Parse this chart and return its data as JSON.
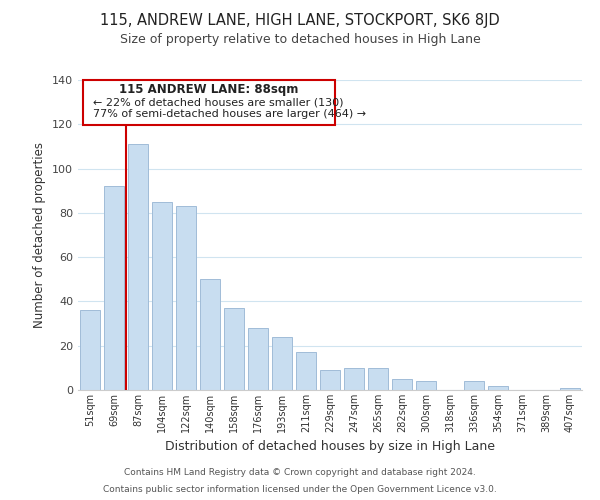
{
  "title": "115, ANDREW LANE, HIGH LANE, STOCKPORT, SK6 8JD",
  "subtitle": "Size of property relative to detached houses in High Lane",
  "xlabel": "Distribution of detached houses by size in High Lane",
  "ylabel": "Number of detached properties",
  "bar_color": "#c8ddf0",
  "bar_edge_color": "#a0bcd8",
  "vline_color": "#cc0000",
  "categories": [
    "51sqm",
    "69sqm",
    "87sqm",
    "104sqm",
    "122sqm",
    "140sqm",
    "158sqm",
    "176sqm",
    "193sqm",
    "211sqm",
    "229sqm",
    "247sqm",
    "265sqm",
    "282sqm",
    "300sqm",
    "318sqm",
    "336sqm",
    "354sqm",
    "371sqm",
    "389sqm",
    "407sqm"
  ],
  "values": [
    36,
    92,
    111,
    85,
    83,
    50,
    37,
    28,
    24,
    17,
    9,
    10,
    10,
    5,
    4,
    0,
    4,
    2,
    0,
    0,
    1
  ],
  "ylim": [
    0,
    140
  ],
  "yticks": [
    0,
    20,
    40,
    60,
    80,
    100,
    120,
    140
  ],
  "annotation_title": "115 ANDREW LANE: 88sqm",
  "annotation_line1": "← 22% of detached houses are smaller (130)",
  "annotation_line2": "77% of semi-detached houses are larger (464) →",
  "footer1": "Contains HM Land Registry data © Crown copyright and database right 2024.",
  "footer2": "Contains public sector information licensed under the Open Government Licence v3.0.",
  "background_color": "#ffffff",
  "grid_color": "#d0e4f0"
}
